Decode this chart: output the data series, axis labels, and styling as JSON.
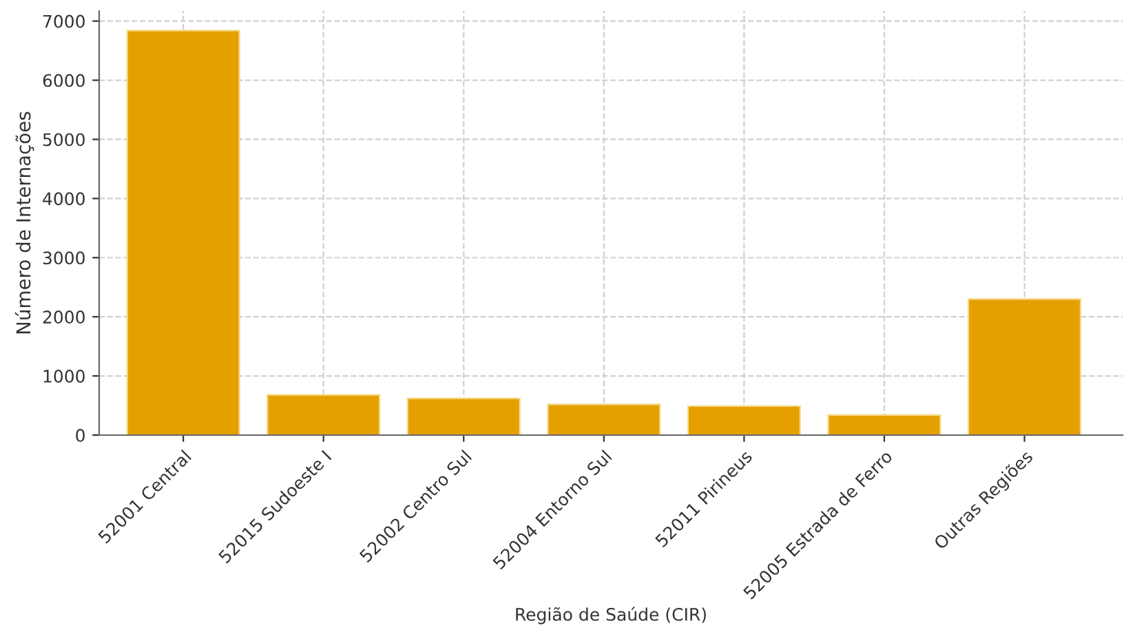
{
  "chart_data": {
    "type": "bar",
    "xlabel": "Região de Saúde (CIR)",
    "ylabel": "Número de Internações",
    "categories": [
      "52001 Central",
      "52015 Sudoeste I",
      "52002 Centro Sul",
      "52004 Entorno Sul",
      "52011 Pirineus",
      "52005 Estrada de Ferro",
      "Outras Regiões"
    ],
    "values": [
      6840,
      680,
      620,
      520,
      490,
      340,
      2300
    ],
    "color": "#e5a000",
    "ylim": [
      0,
      7170
    ],
    "yticks": [
      0,
      1000,
      2000,
      3000,
      4000,
      5000,
      6000,
      7000
    ],
    "grid": true
  }
}
